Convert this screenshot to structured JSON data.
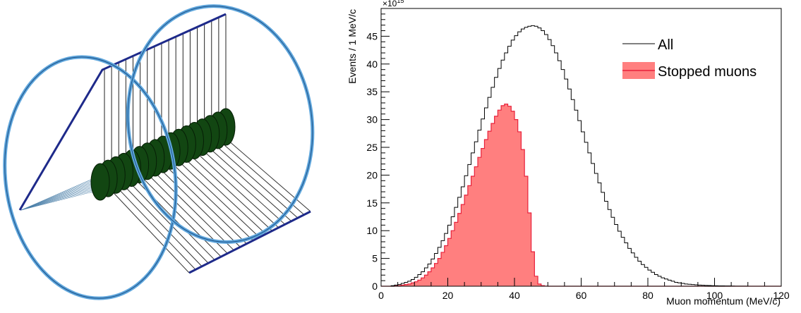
{
  "detector": {
    "description_icon": "muon-stopping-target-geometry"
  },
  "chart_data": {
    "type": "histogram",
    "title": "",
    "xlabel": "Muon momentum (MeV/c)",
    "ylabel": "Events / 1 MeV/c",
    "y_multiplier": "×10",
    "y_multiplier_exp": "15",
    "xlim": [
      0,
      120
    ],
    "ylim": [
      0,
      50
    ],
    "x_ticks": [
      0,
      20,
      40,
      60,
      80,
      100,
      120
    ],
    "y_ticks": [
      0,
      5,
      10,
      15,
      20,
      25,
      30,
      35,
      40,
      45
    ],
    "bin_width": 1,
    "legend_position": "top-right",
    "series": [
      {
        "name": "All",
        "style": "line",
        "color": "#000000",
        "x_start": 0,
        "values": [
          0,
          0,
          0,
          0.1,
          0.2,
          0.3,
          0.5,
          0.7,
          0.9,
          1.2,
          1.6,
          2.1,
          2.6,
          3.3,
          4.0,
          4.9,
          5.9,
          7.0,
          8.2,
          9.5,
          11.0,
          12.5,
          14.2,
          16.0,
          17.9,
          19.9,
          21.9,
          24.0,
          26.0,
          28.1,
          30.1,
          32.1,
          34.0,
          35.8,
          37.6,
          39.2,
          40.7,
          42.0,
          43.2,
          44.3,
          45.1,
          45.8,
          46.3,
          46.6,
          46.8,
          46.9,
          46.8,
          46.5,
          46.0,
          45.3,
          44.4,
          43.3,
          42.0,
          40.6,
          39.0,
          37.3,
          35.5,
          33.6,
          31.7,
          29.8,
          27.8,
          25.9,
          24.0,
          22.1,
          20.3,
          18.6,
          16.9,
          15.3,
          13.8,
          12.4,
          11.1,
          9.9,
          8.8,
          7.8,
          6.8,
          6.0,
          5.2,
          4.5,
          3.9,
          3.4,
          2.9,
          2.5,
          2.1,
          1.8,
          1.5,
          1.3,
          1.1,
          0.9,
          0.7,
          0.6,
          0.5,
          0.4,
          0.35,
          0.3,
          0.25,
          0.2,
          0.17,
          0.14,
          0.12,
          0.1,
          0.08,
          0.07,
          0.06,
          0.05,
          0.04,
          0.03,
          0.02,
          0.02,
          0.01,
          0.01,
          0,
          0,
          0,
          0,
          0,
          0,
          0,
          0,
          0,
          0
        ]
      },
      {
        "name": "Stopped muons",
        "style": "filled",
        "color": "#ff7f7f",
        "edge_color": "#e8203a",
        "x_start": 0,
        "values": [
          0,
          0,
          0,
          0,
          0.05,
          0.1,
          0.2,
          0.3,
          0.4,
          0.6,
          0.8,
          1.1,
          1.5,
          2.0,
          2.6,
          3.3,
          4.1,
          5.0,
          6.1,
          7.3,
          8.6,
          10.0,
          11.5,
          13.1,
          14.7,
          16.4,
          18.1,
          19.8,
          21.5,
          23.2,
          24.8,
          26.4,
          27.9,
          29.3,
          30.6,
          31.7,
          32.5,
          32.8,
          32.4,
          31.5,
          30.0,
          27.8,
          24.6,
          19.8,
          13.2,
          6.2,
          1.8,
          0.4,
          0.1,
          0.02,
          0,
          0,
          0,
          0,
          0,
          0,
          0,
          0,
          0,
          0,
          0,
          0,
          0,
          0,
          0,
          0,
          0,
          0,
          0,
          0,
          0,
          0,
          0,
          0,
          0,
          0,
          0,
          0,
          0,
          0,
          0,
          0,
          0,
          0,
          0,
          0,
          0,
          0,
          0,
          0,
          0,
          0,
          0,
          0,
          0,
          0,
          0,
          0,
          0,
          0,
          0,
          0,
          0,
          0,
          0,
          0,
          0,
          0,
          0,
          0,
          0,
          0,
          0,
          0,
          0,
          0,
          0,
          0,
          0,
          0
        ]
      }
    ]
  }
}
